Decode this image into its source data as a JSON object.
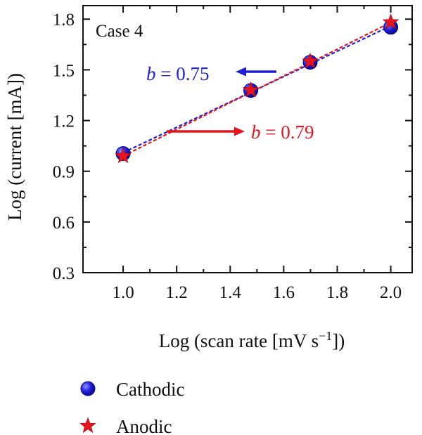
{
  "chart_data": {
    "type": "scatter",
    "panel_label": "Case 4",
    "xlabel_prefix": "Log (scan rate [mV s",
    "xlabel_sup": "−1",
    "xlabel_suffix": "])",
    "ylabel": "Log (current [mA])",
    "xlim": [
      0.85,
      2.08
    ],
    "ylim": [
      0.3,
      1.88
    ],
    "xticks": [
      1.0,
      1.2,
      1.4,
      1.6,
      1.8,
      2.0
    ],
    "xtick_labels": [
      "1.0",
      "1.2",
      "1.4",
      "1.6",
      "1.8",
      "2.0"
    ],
    "yticks": [
      0.3,
      0.6,
      0.9,
      1.2,
      1.5,
      1.8
    ],
    "ytick_labels": [
      "0.3",
      "0.6",
      "0.9",
      "1.2",
      "1.5",
      "1.8"
    ],
    "series": [
      {
        "name": "Cathodic",
        "marker": "circle",
        "color": "#1f1fd6",
        "x": [
          1.0,
          1.477,
          1.699,
          2.0
        ],
        "y": [
          1.005,
          1.378,
          1.545,
          1.752
        ],
        "fit": {
          "x": [
            1.0,
            2.0
          ],
          "y": [
            1.01,
            1.76
          ]
        },
        "annotation": {
          "italic": "b",
          "text": " = 0.75",
          "arrow": "left"
        }
      },
      {
        "name": "Anodic",
        "marker": "star",
        "color": "#e8141c",
        "x": [
          1.0,
          1.477,
          1.699,
          2.0
        ],
        "y": [
          0.99,
          1.38,
          1.55,
          1.782
        ],
        "fit": {
          "x": [
            1.0,
            2.0
          ],
          "y": [
            0.99,
            1.78
          ]
        },
        "annotation": {
          "italic": "b",
          "text": " = 0.79",
          "arrow": "right"
        }
      }
    ],
    "grid": false,
    "legend_position": "bottom-left"
  }
}
